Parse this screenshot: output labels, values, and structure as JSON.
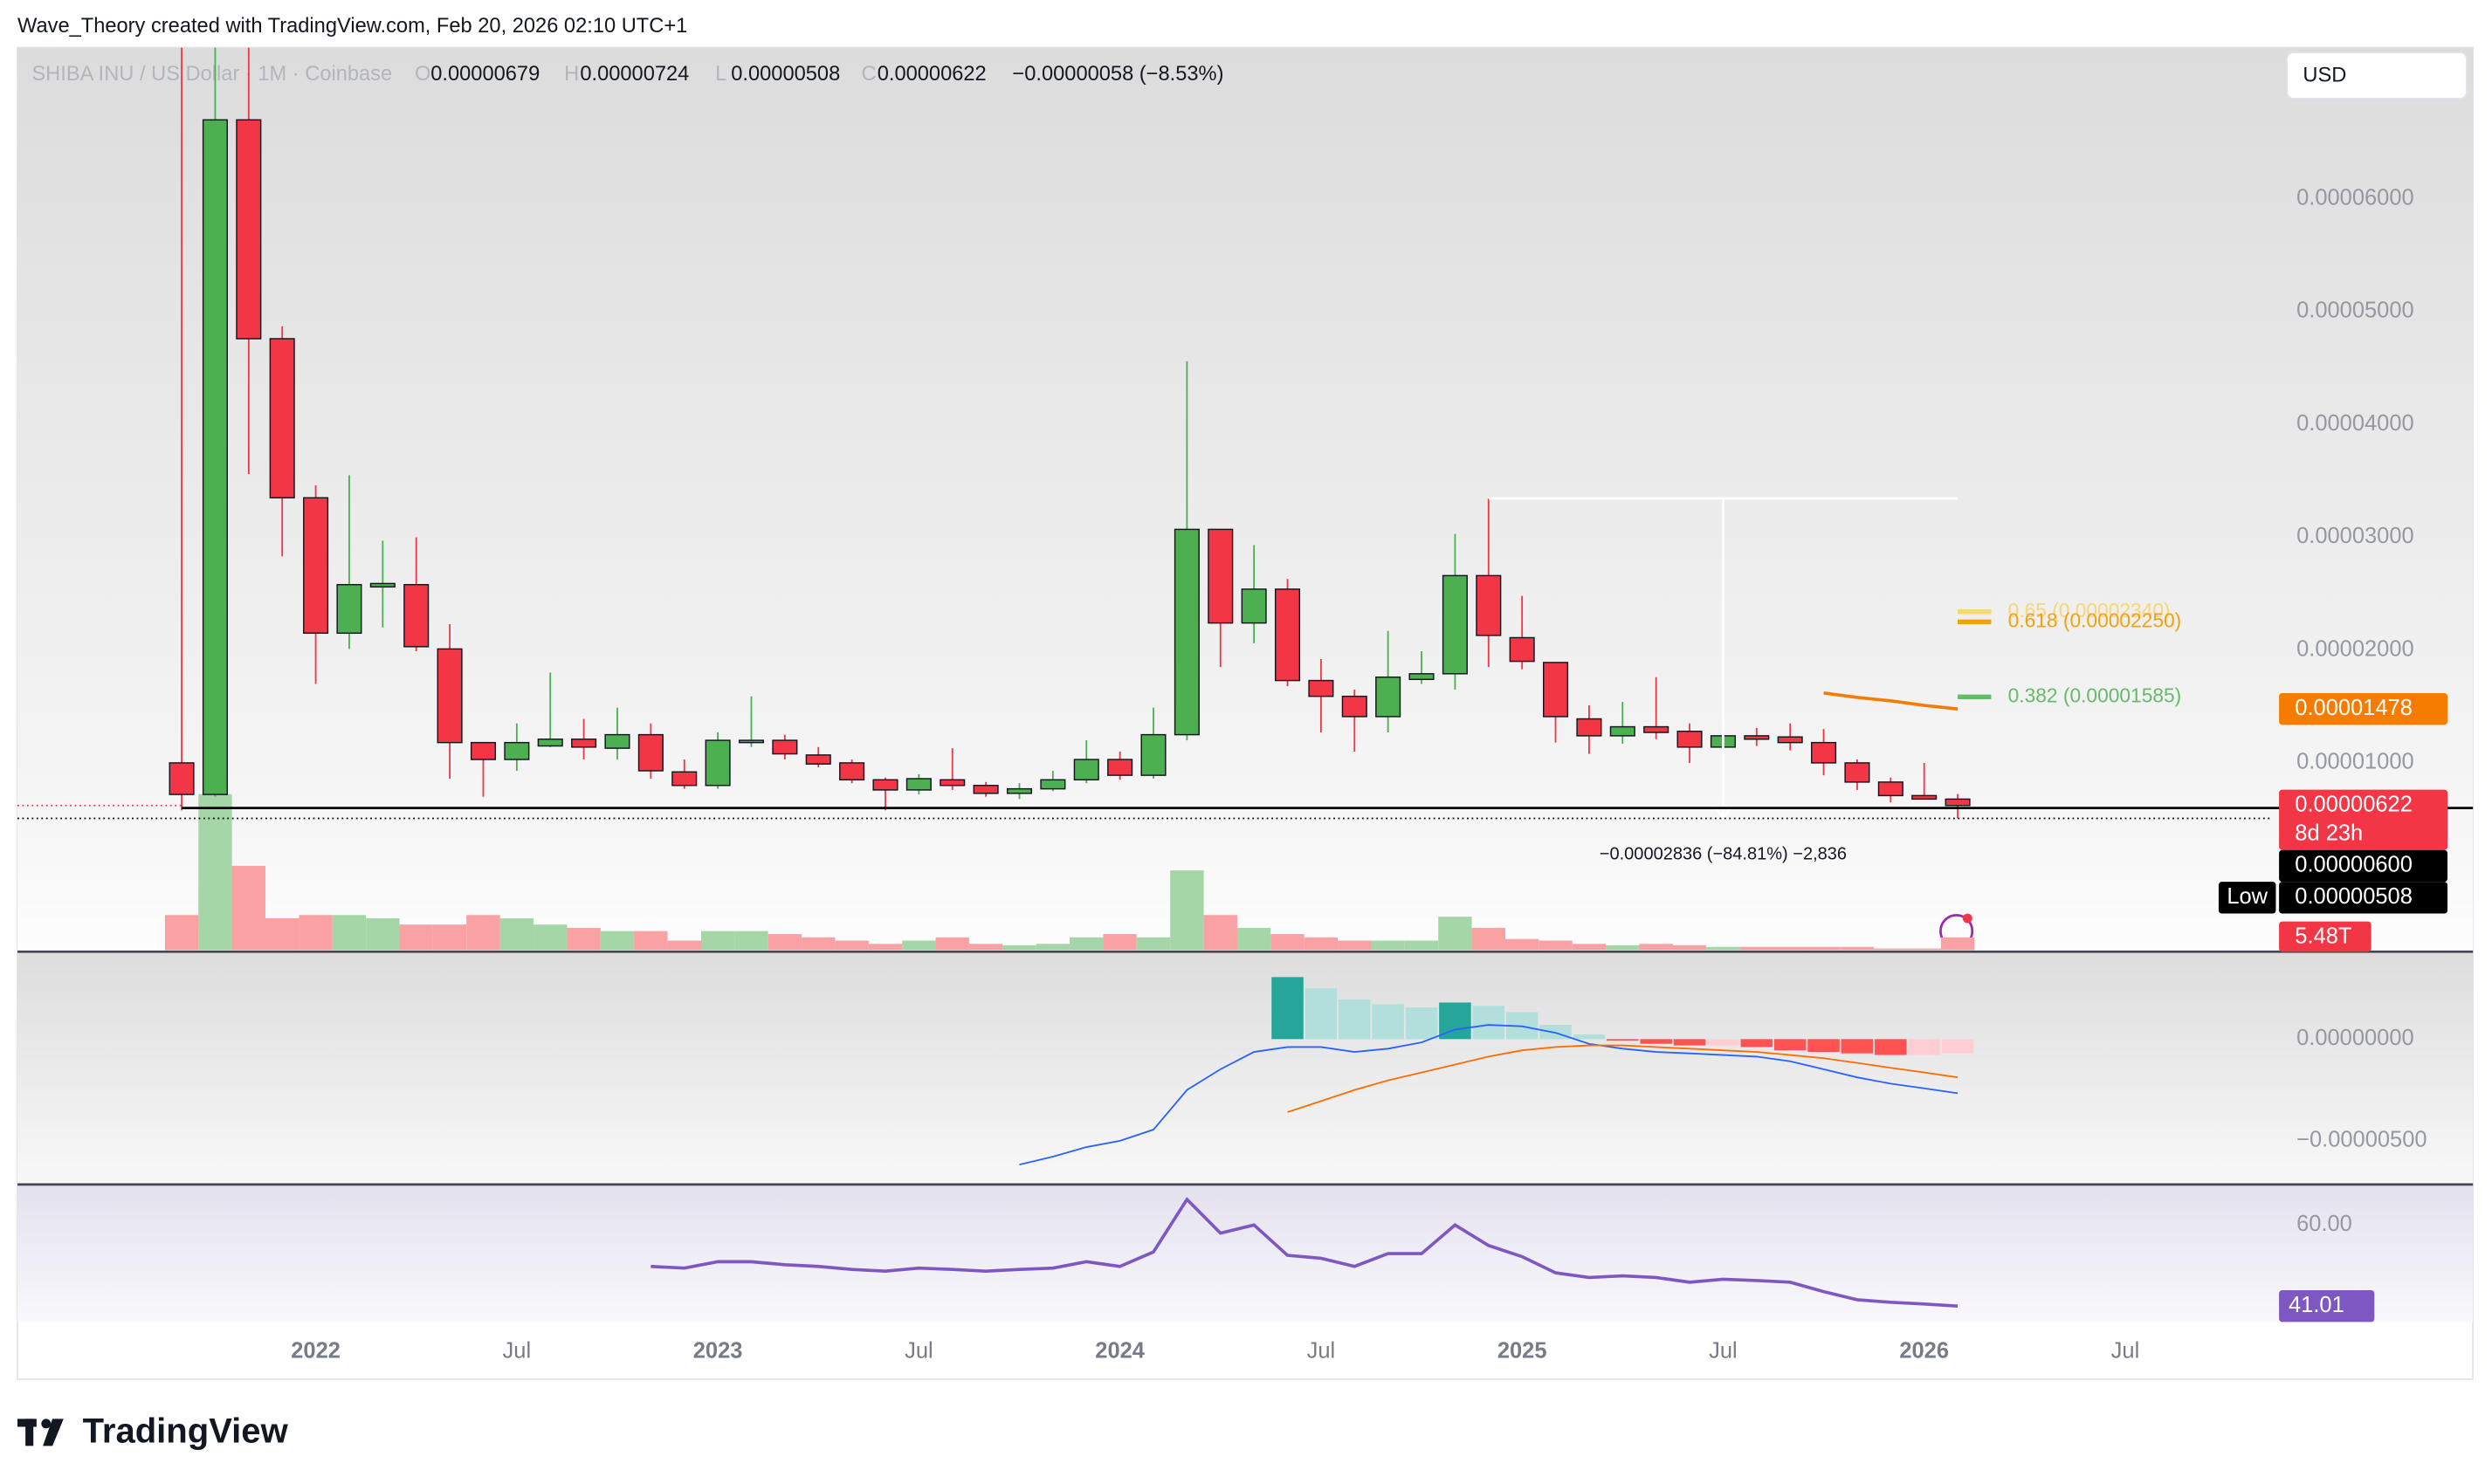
{
  "header": {
    "credit": "Wave_Theory created with TradingView.com, Feb 20, 2026 02:10 UTC+1",
    "brand": "TradingView"
  },
  "chart_data": [
    {
      "type": "candlestick",
      "title": "SHIBA INU / US Dollar · 1M · Coinbase",
      "legend": [
        {
          "key": "O",
          "text": "0.00000679"
        },
        {
          "key": "H",
          "text": "0.00000724"
        },
        {
          "key": "L",
          "text": "0.00000508"
        },
        {
          "key": "C",
          "text": "0.00000622"
        }
      ],
      "change": "−0.00000058 (−8.53%)",
      "currency": "USD",
      "colors": {
        "up": "#4caf50",
        "down": "#f23645",
        "vol_up": "#a5d6a7",
        "vol_down": "#faa1a4"
      },
      "open": [
        1e-05,
        7.2e-06,
        6.7e-05,
        4.76e-05,
        3.35e-05,
        2.15e-05,
        2.56e-05,
        2.58e-05,
        2.01e-05,
        1.18e-05,
        1.03e-05,
        1.15e-05,
        1.21e-05,
        1.13e-05,
        1.25e-05,
        9.2e-06,
        8e-06,
        1.18e-05,
        1.2e-05,
        1.07e-05,
        1e-05,
        8.5e-06,
        7.6e-06,
        8.5e-06,
        8e-06,
        7.3e-06,
        7.7e-06,
        8.5e-06,
        1.03e-05,
        8.9e-06,
        1.25e-05,
        3.07e-05,
        2.24e-05,
        2.54e-05,
        1.73e-05,
        1.59e-05,
        1.41e-05,
        1.74e-05,
        1.79e-05,
        2.66e-05,
        2.11e-05,
        1.89e-05,
        1.39e-05,
        1.24e-05,
        1.32e-05,
        1.28e-05,
        1.14e-05,
        1.24e-05,
        1.23e-05,
        1.18e-05,
        1e-05,
        8.3e-06,
        7.1e-06,
        6.79e-06
      ],
      "high": [
        8.8e-05,
        8.8e-05,
        8e-05,
        4.87e-05,
        3.46e-05,
        3.55e-05,
        2.97e-05,
        3e-05,
        2.23e-05,
        1.18e-05,
        1.35e-05,
        1.8e-05,
        1.39e-05,
        1.49e-05,
        1.35e-05,
        1.03e-05,
        1.27e-05,
        1.59e-05,
        1.25e-05,
        1.14e-05,
        1.03e-05,
        8.7e-06,
        9e-06,
        1.13e-05,
        8.3e-06,
        8.2e-06,
        9.3e-06,
        1.2e-05,
        1.1e-05,
        1.49e-05,
        4.56e-05,
        3.07e-05,
        2.93e-05,
        2.63e-05,
        1.92e-05,
        1.65e-05,
        2.17e-05,
        1.99e-05,
        3.03e-05,
        3.344e-05,
        2.48e-05,
        1.89e-05,
        1.51e-05,
        1.54e-05,
        1.76e-05,
        1.35e-05,
        1.61e-05,
        1.31e-05,
        1.35e-05,
        1.3e-05,
        1.03e-05,
        8.7e-06,
        1e-05,
        7.24e-06
      ],
      "low": [
        5.8e-06,
        7e-06,
        3.56e-05,
        2.83e-05,
        1.7e-05,
        2.01e-05,
        2.2e-05,
        1.99e-05,
        8.6e-06,
        7e-06,
        9.3e-06,
        1.14e-05,
        1.03e-05,
        1.03e-05,
        8.6e-06,
        7.7e-06,
        7.7e-06,
        1.14e-05,
        1.03e-05,
        9.6e-06,
        8.2e-06,
        5.8e-06,
        7.2e-06,
        7.6e-06,
        7e-06,
        6.8e-06,
        7.5e-06,
        8.2e-06,
        8.5e-06,
        8.6e-06,
        1.2e-05,
        1.85e-05,
        2.06e-05,
        1.68e-05,
        1.27e-05,
        1.1e-05,
        1.27e-05,
        1.7e-05,
        1.65e-05,
        1.85e-05,
        1.83e-05,
        1.18e-05,
        1.08e-05,
        1.17e-05,
        1.21e-05,
        1e-05,
        1.08e-05,
        1.15e-05,
        1.11e-05,
        8.9e-06,
        7.6e-06,
        6.5e-06,
        6.8e-06,
        5.08e-06
      ],
      "close": [
        7.2e-06,
        6.7e-05,
        4.76e-05,
        3.35e-05,
        2.15e-05,
        2.58e-05,
        2.59e-05,
        2.03e-05,
        1.18e-05,
        1.03e-05,
        1.18e-05,
        1.21e-05,
        1.14e-05,
        1.25e-05,
        9.3e-06,
        8e-06,
        1.2e-05,
        1.2e-05,
        1.08e-05,
        9.9e-06,
        8.5e-06,
        7.6e-06,
        8.6e-06,
        8e-06,
        7.3e-06,
        7.7e-06,
        8.5e-06,
        1.03e-05,
        8.9e-06,
        1.25e-05,
        3.07e-05,
        2.24e-05,
        2.54e-05,
        1.73e-05,
        1.59e-05,
        1.41e-05,
        1.76e-05,
        1.79e-05,
        2.66e-05,
        2.13e-05,
        1.9e-05,
        1.41e-05,
        1.24e-05,
        1.32e-05,
        1.27e-05,
        1.14e-05,
        1.24e-05,
        1.21e-05,
        1.18e-05,
        1e-05,
        8.3e-06,
        7.1e-06,
        6.79e-06,
        6.22e-06
      ],
      "volume": [
        15.1,
        67.1,
        36.3,
        13.7,
        15.1,
        15.1,
        13.7,
        11.0,
        11.0,
        15.1,
        13.7,
        11.0,
        9.6,
        8.2,
        8.2,
        4.1,
        8.2,
        8.2,
        6.9,
        5.5,
        4.1,
        2.7,
        4.1,
        5.5,
        2.7,
        2.1,
        2.7,
        5.5,
        6.9,
        5.5,
        34.3,
        15.1,
        9.6,
        6.9,
        5.5,
        4.1,
        4.1,
        4.1,
        14.4,
        9.6,
        4.8,
        4.1,
        2.7,
        2.1,
        2.7,
        2.1,
        1.4,
        1.4,
        1.4,
        1.4,
        1.4,
        0.7,
        0.7,
        5.48
      ],
      "volume_value_labels": [
        null,
        null,
        null,
        null,
        null,
        null,
        null,
        null,
        null,
        null,
        null,
        null,
        null,
        null,
        null,
        null,
        null,
        null,
        null,
        null,
        null,
        null,
        null,
        null,
        null,
        null,
        null,
        null,
        null,
        null,
        null,
        null,
        null,
        null,
        null,
        null,
        null,
        null,
        null,
        null,
        null,
        null,
        null,
        null,
        null,
        null,
        null,
        null,
        null,
        null,
        null,
        null,
        null,
        "5.48T"
      ],
      "volume_lim": [
        0,
        80
      ],
      "ma": {
        "color": "#f57c00",
        "values": [
          null,
          null,
          null,
          null,
          null,
          null,
          null,
          null,
          null,
          null,
          null,
          null,
          null,
          null,
          null,
          null,
          null,
          null,
          null,
          null,
          null,
          null,
          null,
          null,
          null,
          null,
          null,
          null,
          null,
          null,
          null,
          null,
          null,
          null,
          null,
          null,
          null,
          null,
          null,
          null,
          null,
          null,
          null,
          null,
          null,
          null,
          null,
          null,
          null,
          1.62e-05,
          1.58e-05,
          1.55e-05,
          1.51e-05,
          1.478e-05
        ]
      },
      "xlim": [
        -4.9,
        62.4
      ],
      "xticks": [
        {
          "value": 4,
          "label": "2022"
        },
        {
          "value": 10,
          "label": "Jul"
        },
        {
          "value": 16,
          "label": "2023"
        },
        {
          "value": 22,
          "label": "Jul"
        },
        {
          "value": 28,
          "label": "2024"
        },
        {
          "value": 34,
          "label": "Jul"
        },
        {
          "value": 40,
          "label": "2025"
        },
        {
          "value": 46,
          "label": "Jul"
        },
        {
          "value": 52,
          "label": "2026"
        },
        {
          "value": 58,
          "label": "Jul"
        }
      ],
      "ylim": [
        -6.6e-06,
        7.34e-05
      ],
      "yticks": [
        {
          "value": 1e-05,
          "label": "0.00001000"
        },
        {
          "value": 2e-05,
          "label": "0.00002000"
        },
        {
          "value": 3e-05,
          "label": "0.00003000"
        },
        {
          "value": 4e-05,
          "label": "0.00004000"
        },
        {
          "value": 5e-05,
          "label": "0.00005000"
        },
        {
          "value": 6e-05,
          "label": "0.00006000"
        }
      ],
      "price_labels": [
        {
          "value": 1.478e-05,
          "label": "0.00001478",
          "color": "#f57c00"
        },
        {
          "value": 6.22e-06,
          "label": "0.00000622",
          "color": "#f23645",
          "countdown": "8d 23h"
        },
        {
          "value": 6e-06,
          "label": "0.00000600",
          "color": "#000000"
        },
        {
          "value": 5.08e-06,
          "label": "0.00000508",
          "color": "#000000",
          "tag": "Low"
        }
      ],
      "fib_levels": [
        {
          "value": 2.34e-05,
          "label": "0.65 (0.00002340)",
          "color": "#f7d774"
        },
        {
          "value": 2.25e-05,
          "label": "0.618 (0.00002250)",
          "color": "#f2a20c"
        },
        {
          "value": 1.585e-05,
          "label": "0.382 (0.00001585)",
          "color": "#66bb6a"
        }
      ],
      "measure": {
        "x": [
          39,
          53
        ],
        "from": 3.344e-05,
        "to": 5.08e-06,
        "label": "−0.00002836 (−84.81%) −2,836"
      }
    },
    {
      "type": "macd",
      "colors": {
        "pos_up": "#26a69a",
        "pos_down": "#b2dfdb",
        "neg_down": "#ff5252",
        "neg_up": "#ffcdd2",
        "macd": "#2962ff",
        "signal": "#ff6d00"
      },
      "macd": [
        null,
        null,
        null,
        null,
        null,
        null,
        null,
        null,
        null,
        null,
        null,
        null,
        null,
        null,
        null,
        null,
        null,
        null,
        null,
        null,
        null,
        null,
        null,
        null,
        null,
        -6.17e-06,
        -5.78e-06,
        -5.31e-06,
        -5e-06,
        -4.45e-06,
        -2.5e-06,
        -1.48e-06,
        -6.3e-07,
        -3.9e-07,
        -3.9e-07,
        -6.3e-07,
        -4.7e-07,
        -1.6e-07,
        4.7e-07,
        7e-07,
        6.3e-07,
        3.1e-07,
        -2.3e-07,
        -4.7e-07,
        -6.3e-07,
        -7e-07,
        -7.8e-07,
        -8.6e-07,
        -1.09e-06,
        -1.48e-06,
        -1.88e-06,
        -2.19e-06,
        -2.42e-06,
        -2.66e-06
      ],
      "signal": [
        null,
        null,
        null,
        null,
        null,
        null,
        null,
        null,
        null,
        null,
        null,
        null,
        null,
        null,
        null,
        null,
        null,
        null,
        null,
        null,
        null,
        null,
        null,
        null,
        null,
        null,
        null,
        null,
        null,
        null,
        null,
        null,
        null,
        -3.59e-06,
        -3.05e-06,
        -2.5e-06,
        -2.03e-06,
        -1.64e-06,
        -1.25e-06,
        -8.6e-07,
        -5.5e-07,
        -3.9e-07,
        -3.1e-07,
        -3.1e-07,
        -3.9e-07,
        -4.7e-07,
        -5.5e-07,
        -6.3e-07,
        -7.8e-07,
        -9.4e-07,
        -1.17e-06,
        -1.41e-06,
        -1.64e-06,
        -1.88e-06
      ],
      "histogram": [
        null,
        null,
        null,
        null,
        null,
        null,
        null,
        null,
        null,
        null,
        null,
        null,
        null,
        null,
        null,
        null,
        null,
        null,
        null,
        null,
        null,
        null,
        null,
        null,
        null,
        null,
        null,
        null,
        null,
        null,
        null,
        null,
        null,
        3.05e-06,
        2.5e-06,
        1.95e-06,
        1.72e-06,
        1.56e-06,
        1.8e-06,
        1.64e-06,
        1.33e-06,
        7e-07,
        2.3e-07,
        -8e-08,
        -2.3e-07,
        -3.1e-07,
        -3.1e-07,
        -3.9e-07,
        -5.5e-07,
        -6.3e-07,
        -7e-07,
        -7.8e-07,
        -7.8e-07,
        -7e-07
      ],
      "ylim": [
        -7.11e-06,
        4.22e-06
      ],
      "yticks": [
        {
          "value": 0,
          "label": "0.00000000"
        },
        {
          "value": -5e-06,
          "label": "−0.00000500"
        }
      ]
    },
    {
      "type": "rsi",
      "color": "#7e57c2",
      "values": [
        null,
        null,
        null,
        null,
        null,
        null,
        null,
        null,
        null,
        null,
        null,
        null,
        null,
        null,
        50.3,
        49.9,
        51.4,
        51.4,
        50.7,
        50.3,
        49.6,
        49.2,
        49.9,
        49.6,
        49.2,
        49.6,
        49.9,
        51.4,
        50.3,
        53.7,
        66.0,
        58.1,
        60.0,
        52.9,
        52.2,
        50.3,
        53.3,
        53.3,
        60.0,
        55.2,
        52.6,
        48.8,
        47.7,
        48.1,
        47.7,
        46.6,
        47.3,
        47.0,
        46.6,
        44.4,
        42.5,
        41.9,
        41.5,
        41.01
      ],
      "ylim": [
        37.3,
        69.3
      ],
      "yticks": [
        {
          "value": 60,
          "label": "60.00"
        }
      ]
    }
  ]
}
